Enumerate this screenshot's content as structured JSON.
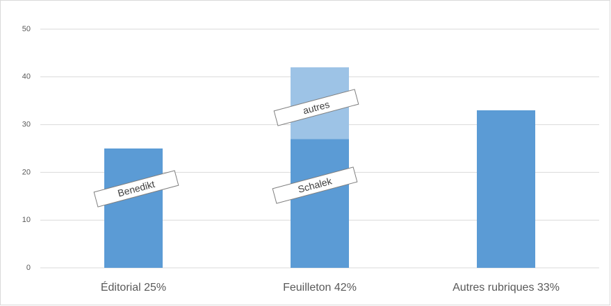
{
  "chart_data": {
    "type": "stacked_bar",
    "categories": [
      "Éditorial 25%",
      "Feuilleton 42%",
      "Autres rubriques 33%"
    ],
    "series": [
      {
        "color": "#5b9bd5",
        "values": [
          25,
          27,
          33
        ]
      },
      {
        "color": "#9dc3e6",
        "values": [
          null,
          15,
          null
        ]
      }
    ],
    "annotations": [
      "Benedikt",
      "Schalek",
      "autres"
    ],
    "ylim": [
      0,
      50
    ],
    "yticks": [
      0,
      10,
      20,
      30,
      40,
      50
    ],
    "grid": true
  }
}
